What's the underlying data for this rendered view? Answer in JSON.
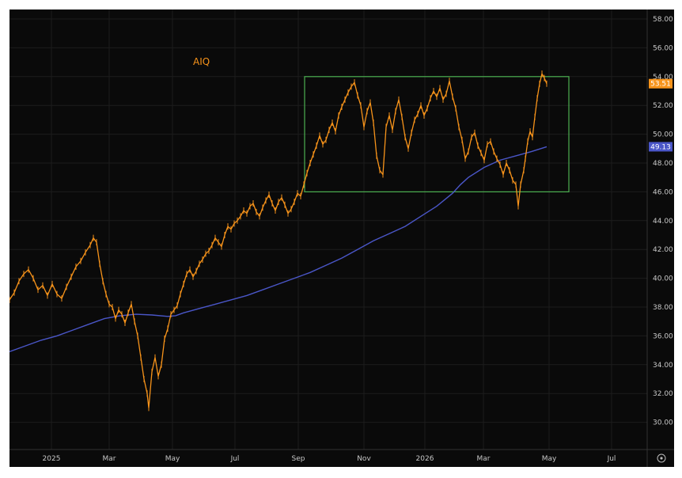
{
  "chart_data": {
    "type": "line",
    "ticker": "AIQ",
    "ylim": [
      28,
      59
    ],
    "y_ticks": [
      "58.00",
      "56.00",
      "54.00",
      "52.00",
      "50.00",
      "48.00",
      "46.00",
      "44.00",
      "42.00",
      "40.00",
      "38.00",
      "36.00",
      "34.00",
      "32.00",
      "30.00"
    ],
    "y_tick_values": [
      58,
      56,
      54,
      52,
      50,
      48,
      46,
      44,
      42,
      40,
      38,
      36,
      34,
      32,
      30
    ],
    "x_range": [
      0,
      820
    ],
    "x_ticks": [
      {
        "label": "2025",
        "t": 53
      },
      {
        "label": "Mar",
        "t": 126
      },
      {
        "label": "May",
        "t": 206
      },
      {
        "label": "Jul",
        "t": 285
      },
      {
        "label": "Sep",
        "t": 365
      },
      {
        "label": "Nov",
        "t": 448
      },
      {
        "label": "2026",
        "t": 525
      },
      {
        "label": "Mar",
        "t": 599
      },
      {
        "label": "May",
        "t": 682
      },
      {
        "label": "Jul",
        "t": 761
      }
    ],
    "series": [
      {
        "color": "#f7931a",
        "values": [
          [
            0,
            38.5
          ],
          [
            6,
            39.0
          ],
          [
            12,
            39.8
          ],
          [
            18,
            40.3
          ],
          [
            24,
            40.6
          ],
          [
            30,
            40.0
          ],
          [
            36,
            39.2
          ],
          [
            42,
            39.5
          ],
          [
            48,
            38.8
          ],
          [
            54,
            39.6
          ],
          [
            60,
            38.9
          ],
          [
            66,
            38.6
          ],
          [
            72,
            39.4
          ],
          [
            78,
            40.1
          ],
          [
            84,
            40.8
          ],
          [
            90,
            41.2
          ],
          [
            96,
            41.8
          ],
          [
            102,
            42.3
          ],
          [
            106,
            42.8
          ],
          [
            110,
            42.5
          ],
          [
            114,
            41.0
          ],
          [
            118,
            39.8
          ],
          [
            122,
            38.9
          ],
          [
            126,
            38.2
          ],
          [
            130,
            38.0
          ],
          [
            134,
            37.2
          ],
          [
            138,
            37.8
          ],
          [
            142,
            37.5
          ],
          [
            146,
            36.9
          ],
          [
            150,
            37.6
          ],
          [
            154,
            38.2
          ],
          [
            158,
            37.0
          ],
          [
            162,
            36.0
          ],
          [
            166,
            34.5
          ],
          [
            170,
            33.0
          ],
          [
            174,
            32.0
          ],
          [
            176,
            31.0
          ],
          [
            180,
            33.5
          ],
          [
            184,
            34.5
          ],
          [
            188,
            33.2
          ],
          [
            192,
            34.0
          ],
          [
            196,
            35.8
          ],
          [
            200,
            36.5
          ],
          [
            204,
            37.5
          ],
          [
            208,
            37.8
          ],
          [
            212,
            38.1
          ],
          [
            216,
            38.9
          ],
          [
            220,
            39.6
          ],
          [
            224,
            40.3
          ],
          [
            228,
            40.6
          ],
          [
            232,
            40.1
          ],
          [
            236,
            40.5
          ],
          [
            240,
            41.0
          ],
          [
            244,
            41.3
          ],
          [
            248,
            41.7
          ],
          [
            252,
            41.9
          ],
          [
            256,
            42.3
          ],
          [
            260,
            42.8
          ],
          [
            264,
            42.5
          ],
          [
            268,
            42.2
          ],
          [
            272,
            43.0
          ],
          [
            276,
            43.6
          ],
          [
            280,
            43.4
          ],
          [
            284,
            43.8
          ],
          [
            288,
            44.0
          ],
          [
            292,
            44.3
          ],
          [
            296,
            44.7
          ],
          [
            300,
            44.5
          ],
          [
            304,
            45.0
          ],
          [
            308,
            45.2
          ],
          [
            312,
            44.6
          ],
          [
            316,
            44.3
          ],
          [
            320,
            44.9
          ],
          [
            324,
            45.4
          ],
          [
            328,
            45.8
          ],
          [
            332,
            45.2
          ],
          [
            336,
            44.7
          ],
          [
            340,
            45.3
          ],
          [
            344,
            45.6
          ],
          [
            348,
            45.1
          ],
          [
            352,
            44.5
          ],
          [
            356,
            44.8
          ],
          [
            360,
            45.3
          ],
          [
            364,
            45.9
          ],
          [
            368,
            45.7
          ],
          [
            372,
            46.5
          ],
          [
            376,
            47.3
          ],
          [
            380,
            48.0
          ],
          [
            384,
            48.6
          ],
          [
            388,
            49.2
          ],
          [
            392,
            49.9
          ],
          [
            396,
            49.3
          ],
          [
            400,
            49.6
          ],
          [
            404,
            50.3
          ],
          [
            408,
            50.8
          ],
          [
            412,
            50.2
          ],
          [
            416,
            51.3
          ],
          [
            420,
            51.9
          ],
          [
            424,
            52.4
          ],
          [
            428,
            52.9
          ],
          [
            432,
            53.3
          ],
          [
            436,
            53.6
          ],
          [
            440,
            52.7
          ],
          [
            444,
            52.0
          ],
          [
            448,
            50.5
          ],
          [
            452,
            51.6
          ],
          [
            456,
            52.2
          ],
          [
            460,
            50.8
          ],
          [
            464,
            48.5
          ],
          [
            468,
            47.5
          ],
          [
            472,
            47.2
          ],
          [
            476,
            50.5
          ],
          [
            480,
            51.3
          ],
          [
            484,
            50.3
          ],
          [
            488,
            51.6
          ],
          [
            492,
            52.4
          ],
          [
            496,
            51.2
          ],
          [
            500,
            49.8
          ],
          [
            504,
            49.0
          ],
          [
            508,
            50.1
          ],
          [
            512,
            51.0
          ],
          [
            516,
            51.4
          ],
          [
            520,
            52.0
          ],
          [
            524,
            51.3
          ],
          [
            528,
            51.8
          ],
          [
            532,
            52.5
          ],
          [
            536,
            53.0
          ],
          [
            540,
            52.6
          ],
          [
            544,
            53.2
          ],
          [
            548,
            52.4
          ],
          [
            552,
            52.8
          ],
          [
            556,
            53.7
          ],
          [
            560,
            52.6
          ],
          [
            564,
            51.8
          ],
          [
            568,
            50.5
          ],
          [
            572,
            49.6
          ],
          [
            576,
            48.3
          ],
          [
            580,
            48.8
          ],
          [
            584,
            49.8
          ],
          [
            588,
            50.1
          ],
          [
            592,
            49.2
          ],
          [
            596,
            48.7
          ],
          [
            600,
            48.2
          ],
          [
            604,
            49.3
          ],
          [
            608,
            49.5
          ],
          [
            612,
            48.8
          ],
          [
            616,
            48.3
          ],
          [
            620,
            47.9
          ],
          [
            624,
            47.2
          ],
          [
            628,
            48.0
          ],
          [
            632,
            47.5
          ],
          [
            636,
            46.8
          ],
          [
            640,
            46.5
          ],
          [
            643,
            45.0
          ],
          [
            646,
            46.5
          ],
          [
            650,
            47.5
          ],
          [
            652,
            48.3
          ],
          [
            655,
            49.5
          ],
          [
            658,
            50.2
          ],
          [
            661,
            49.8
          ],
          [
            664,
            51.2
          ],
          [
            667,
            52.5
          ],
          [
            670,
            53.5
          ],
          [
            673,
            54.2
          ],
          [
            676,
            53.9
          ],
          [
            679,
            53.51
          ]
        ]
      },
      {
        "color": "#4a56c8",
        "values": [
          [
            0,
            34.9
          ],
          [
            20,
            35.3
          ],
          [
            40,
            35.7
          ],
          [
            60,
            36.0
          ],
          [
            80,
            36.4
          ],
          [
            100,
            36.8
          ],
          [
            120,
            37.2
          ],
          [
            140,
            37.4
          ],
          [
            160,
            37.5
          ],
          [
            180,
            37.45
          ],
          [
            200,
            37.35
          ],
          [
            210,
            37.4
          ],
          [
            220,
            37.6
          ],
          [
            240,
            37.9
          ],
          [
            260,
            38.2
          ],
          [
            280,
            38.5
          ],
          [
            300,
            38.8
          ],
          [
            320,
            39.2
          ],
          [
            340,
            39.6
          ],
          [
            360,
            40.0
          ],
          [
            380,
            40.4
          ],
          [
            400,
            40.9
          ],
          [
            420,
            41.4
          ],
          [
            440,
            42.0
          ],
          [
            460,
            42.6
          ],
          [
            480,
            43.1
          ],
          [
            500,
            43.6
          ],
          [
            520,
            44.3
          ],
          [
            540,
            45.0
          ],
          [
            560,
            45.9
          ],
          [
            570,
            46.5
          ],
          [
            580,
            47.0
          ],
          [
            600,
            47.7
          ],
          [
            620,
            48.2
          ],
          [
            640,
            48.5
          ],
          [
            660,
            48.8
          ],
          [
            679,
            49.13
          ]
        ]
      }
    ],
    "rectangle": {
      "x0": 373,
      "x1": 707,
      "y_top": 54.0,
      "y_bottom": 46.0,
      "color": "#4caf50"
    },
    "last_price_badge": {
      "value": "53.51",
      "color": "#f7931a"
    },
    "ma_badge": {
      "value": "49.13",
      "color": "#4a56c8"
    },
    "settings_icon": "gear-icon"
  }
}
